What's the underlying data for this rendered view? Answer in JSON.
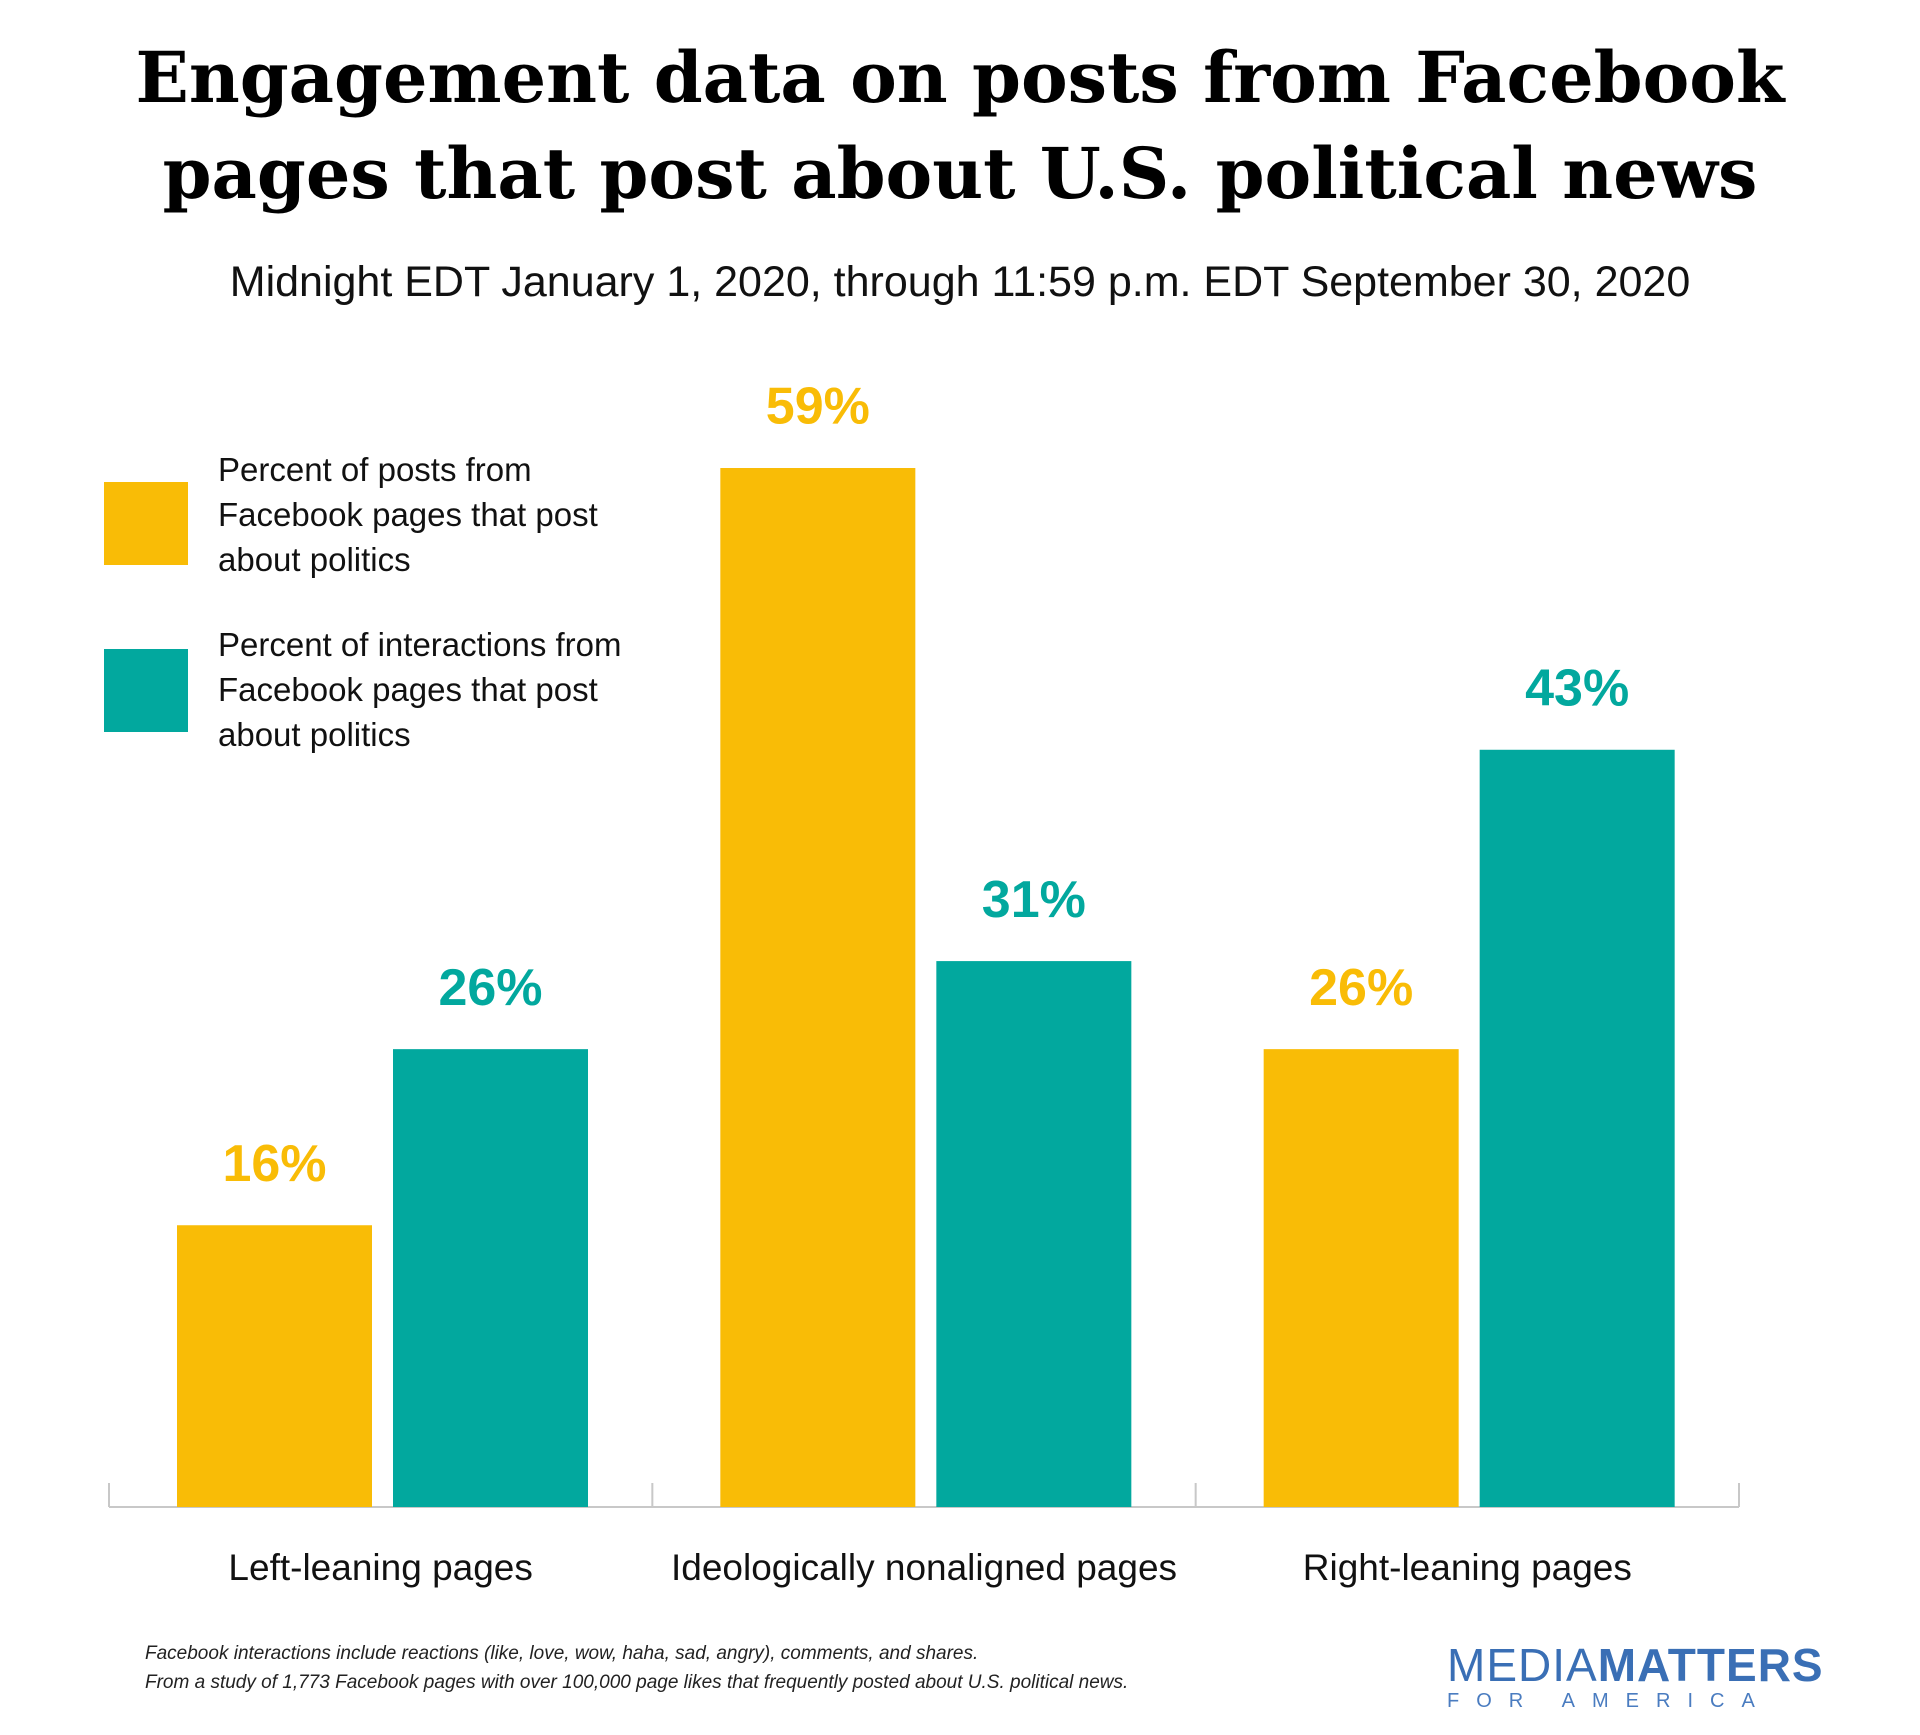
{
  "chart_data": {
    "type": "bar",
    "title": "Engagement data on posts from Facebook pages that post about U.S. political news",
    "subtitle": "Midnight EDT January 1, 2020, through 11:59 p.m. EDT September 30, 2020",
    "categories": [
      "Left-leaning pages",
      "Ideologically nonaligned pages",
      "Right-leaning pages"
    ],
    "series": [
      {
        "name": "Percent of posts from Facebook pages that post about politics",
        "color": "#f9bc06",
        "values": [
          16,
          59,
          26
        ],
        "value_labels": [
          "16%",
          "59%",
          "26%"
        ]
      },
      {
        "name": "Percent of interactions from Facebook pages that post about politics",
        "color": "#02a89e",
        "values": [
          26,
          31,
          43
        ],
        "value_labels": [
          "26%",
          "31%",
          "43%"
        ]
      }
    ],
    "notes": [
      "Facebook interactions include reactions (like, love, wow, haha, sad, angry), comments, and shares.",
      "From a study of 1,773 Facebook pages with over 100,000 page likes that frequently posted about U.S. political news."
    ],
    "logo": {
      "part1": "MEDIA",
      "part2": "MATTERS",
      "tagline": "FOR AMERICA"
    }
  }
}
